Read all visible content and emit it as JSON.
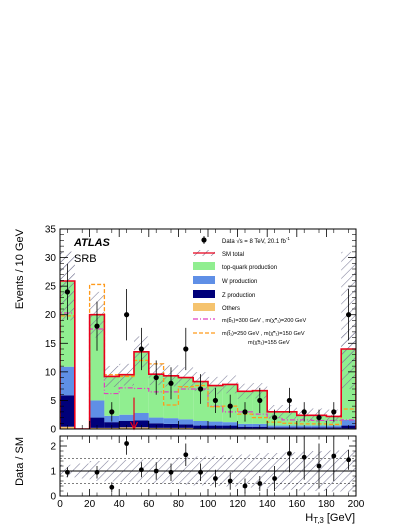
{
  "chart_data": {
    "type": "bar",
    "subtype": "stacked-histogram-with-data-and-ratio",
    "experiment_label": "ATLAS",
    "region_label": "SRB",
    "ylabel": "Events / 10 GeV",
    "xlabel": "H",
    "xlabel_sub": "T,3",
    "xlabel_unit": "[GeV]",
    "ratio_ylabel": "Data / SM",
    "xlim": [
      0,
      200
    ],
    "ylim": [
      0,
      35
    ],
    "ratio_ylim": [
      0,
      2.4
    ],
    "x_ticks": [
      "0",
      "20",
      "40",
      "60",
      "80",
      "100",
      "120",
      "140",
      "160",
      "180",
      "200"
    ],
    "y_ticks": [
      "0",
      "5",
      "10",
      "15",
      "20",
      "25",
      "30",
      "35"
    ],
    "ratio_y_ticks": [
      "0",
      "1",
      "2"
    ],
    "legend_position": "top-right",
    "legend": {
      "data": "Data √s = 8 TeV, 20.1 fb",
      "data_sup": "-1",
      "sm_total": "SM total",
      "top": "top-quark production",
      "w": "W production",
      "z": "Z production",
      "others": "Others",
      "sig1": "m(b̃₁)=300 GeV , m(χ̃⁰₁)=200 GeV",
      "sig2_a": "m(t̃₁)=250 GeV , m(χ̃⁰₁)=150 GeV",
      "sig2_b": "m(χ̃±₁)=155 GeV"
    },
    "colors": {
      "top": "#90ee90",
      "w": "#5f8fe6",
      "z": "#00007a",
      "others": "#f5c36e",
      "sm_total": "#e8001c",
      "sig1": "#e040c0",
      "sig2": "#ff9a1a",
      "data": "#000000"
    },
    "bin_edges": [
      0,
      10,
      20,
      30,
      40,
      50,
      60,
      70,
      80,
      90,
      100,
      110,
      120,
      130,
      140,
      150,
      160,
      170,
      180,
      190,
      200
    ],
    "series": [
      {
        "name": "Others",
        "values": [
          0.4,
          0,
          0.2,
          0.2,
          0.3,
          0.3,
          0.2,
          0.2,
          0.2,
          0.1,
          0.1,
          0.1,
          0.1,
          0.1,
          0.1,
          0.1,
          0.1,
          0.1,
          0.1,
          0.1
        ]
      },
      {
        "name": "Z production",
        "values": [
          5.5,
          0,
          1.8,
          1.0,
          1.1,
          1.2,
          0.8,
          0.7,
          0.6,
          0.5,
          0.5,
          0.5,
          0.3,
          0.3,
          0.2,
          0.2,
          0.2,
          0.2,
          0.2,
          0.5
        ]
      },
      {
        "name": "W production",
        "values": [
          5.0,
          0,
          3.0,
          1.1,
          1.1,
          1.3,
          1.0,
          1.0,
          0.9,
          0.8,
          0.7,
          0.6,
          0.5,
          0.5,
          0.3,
          0.3,
          0.3,
          0.3,
          0.3,
          1.0
        ]
      },
      {
        "name": "top-quark production",
        "values": [
          15.0,
          0,
          15.0,
          6.9,
          7.0,
          10.7,
          7.6,
          7.4,
          7.3,
          6.9,
          6.3,
          6.6,
          5.7,
          5.8,
          2.4,
          2.4,
          1.8,
          1.8,
          1.6,
          12.4
        ]
      }
    ],
    "signal_1": [
      20.3,
      0,
      17.5,
      6.2,
      7.2,
      7.1,
      6.5,
      6.5,
      7.0,
      7.0,
      4.0,
      3.0,
      3.0,
      2.6,
      2.0,
      1.6,
      1.6,
      1.5,
      1.5,
      1.6
    ],
    "signal_2": [
      19.8,
      0,
      25.3,
      9.5,
      9.2,
      12.0,
      11.4,
      4.2,
      7.4,
      7.6,
      3.9,
      4.0,
      2.6,
      2.0,
      1.2,
      1.0,
      0.9,
      0.9,
      0.8,
      3.5
    ],
    "data_x": [
      5,
      25,
      35,
      45,
      55,
      65,
      75,
      85,
      95,
      105,
      115,
      125,
      135,
      145,
      155,
      165,
      175,
      185,
      195
    ],
    "data_y": [
      24,
      18,
      3,
      20,
      14,
      9,
      8,
      14,
      7,
      5,
      4,
      3,
      5,
      2,
      5,
      3,
      2,
      3,
      20
    ],
    "data_err": [
      4.9,
      4.3,
      1.7,
      4.5,
      3.7,
      3.0,
      2.8,
      3.7,
      2.6,
      2.2,
      2.0,
      1.7,
      2.2,
      1.4,
      2.2,
      1.7,
      1.4,
      1.7,
      4.5
    ],
    "arrow_at_x": 50,
    "ratio_x": [
      5,
      25,
      35,
      45,
      55,
      65,
      75,
      85,
      95,
      105,
      115,
      125,
      135,
      145,
      155,
      165,
      175,
      185,
      195
    ],
    "ratio_y": [
      0.95,
      0.95,
      0.35,
      2.1,
      1.05,
      1.0,
      0.95,
      1.65,
      0.95,
      0.7,
      0.6,
      0.4,
      0.5,
      0.7,
      1.7,
      1.55,
      1.2,
      1.6,
      1.45
    ],
    "ratio_err": [
      0.2,
      0.25,
      0.2,
      0.45,
      0.3,
      0.35,
      0.35,
      0.45,
      0.35,
      0.35,
      0.35,
      0.3,
      0.3,
      0.5,
      0.75,
      0.9,
      0.9,
      1.0,
      0.4
    ]
  }
}
